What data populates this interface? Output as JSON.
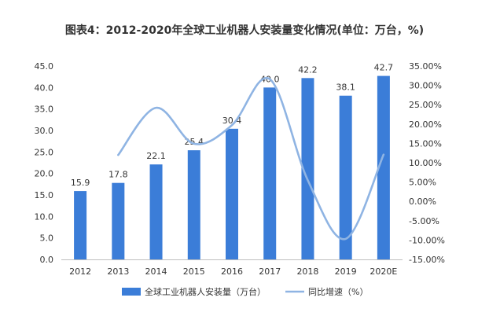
{
  "chart_data": {
    "title": "图表4：2012-2020年全球工业机器人安装量变化情况(单位：万台，%)",
    "type": "bar",
    "categories": [
      "2012",
      "2013",
      "2014",
      "2015",
      "2016",
      "2017",
      "2018",
      "2019",
      "2020E"
    ],
    "series": [
      {
        "name": "全球工业机器人安装量（万台）",
        "type": "bar",
        "axis": "left",
        "values": [
          15.9,
          17.8,
          22.1,
          25.4,
          30.4,
          40.0,
          42.2,
          38.1,
          42.7
        ],
        "labels": [
          "15.9",
          "17.8",
          "22.1",
          "25.4",
          "30.4",
          "40.0",
          "42.2",
          "38.1",
          "42.7"
        ]
      },
      {
        "name": "同比增速（%）",
        "type": "line",
        "axis": "right",
        "values": [
          null,
          12.0,
          24.2,
          14.9,
          19.7,
          31.6,
          5.5,
          -9.7,
          12.1
        ]
      }
    ],
    "ylim_left": [
      0,
      45
    ],
    "yticks_left": [
      "0.0",
      "5.0",
      "10.0",
      "15.0",
      "20.0",
      "25.0",
      "30.0",
      "35.0",
      "40.0",
      "45.0"
    ],
    "ylim_right": [
      -15,
      35
    ],
    "yticks_right": [
      "-15.00%",
      "-10.00%",
      "-5.00%",
      "0.00%",
      "5.00%",
      "10.00%",
      "15.00%",
      "20.00%",
      "25.00%",
      "30.00%",
      "35.00%"
    ],
    "grid": false,
    "legend_position": "bottom",
    "colors": {
      "bar": "#3b7dd8",
      "line": "#8fb4e3",
      "axis": "#bfbfbf",
      "text": "#333333"
    }
  }
}
